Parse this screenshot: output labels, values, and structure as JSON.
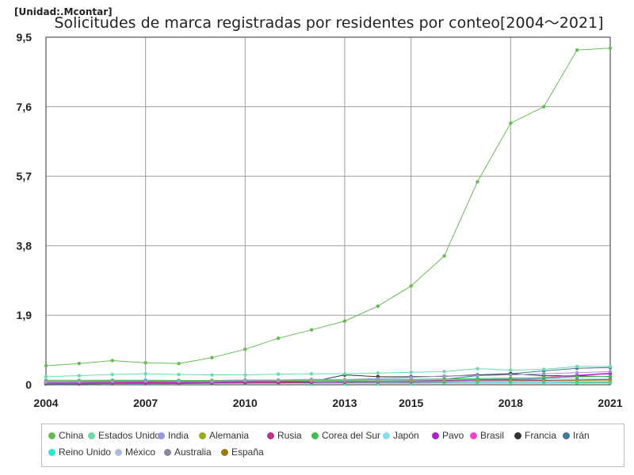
{
  "unit_label": "[Unidad:.Mcontar]",
  "chart_data": {
    "type": "line",
    "title": "Solicitudes de marca registradas por residentes por conteo[2004～2021]",
    "xlabel": "",
    "ylabel": "",
    "x": [
      2004,
      2005,
      2006,
      2007,
      2008,
      2009,
      2010,
      2011,
      2012,
      2013,
      2014,
      2015,
      2016,
      2017,
      2018,
      2019,
      2020,
      2021
    ],
    "x_ticks": [
      "2004",
      "2007",
      "2010",
      "2013",
      "2015",
      "2018",
      "2021"
    ],
    "y_ticks": [
      "0",
      "1,9",
      "3,8",
      "5,7",
      "7,6",
      "9,5"
    ],
    "xlim": [
      2004,
      2021
    ],
    "ylim": [
      0,
      9.5
    ],
    "grid": true,
    "legend_position": "bottom",
    "series": [
      {
        "name": "China",
        "color": "#66bb55",
        "values": [
          0.52,
          0.58,
          0.66,
          0.6,
          0.58,
          0.74,
          0.97,
          1.27,
          1.5,
          1.74,
          2.15,
          2.7,
          3.52,
          5.55,
          7.15,
          7.6,
          9.15,
          9.2
        ]
      },
      {
        "name": "Estados Unidos",
        "color": "#66ddaa",
        "values": [
          0.22,
          0.25,
          0.28,
          0.3,
          0.28,
          0.27,
          0.27,
          0.29,
          0.3,
          0.3,
          0.32,
          0.34,
          0.36,
          0.44,
          0.4,
          0.42,
          0.5,
          0.5
        ]
      },
      {
        "name": "India",
        "color": "#9999dd",
        "values": [
          0.07,
          0.08,
          0.09,
          0.1,
          0.09,
          0.09,
          0.12,
          0.13,
          0.15,
          0.14,
          0.17,
          0.2,
          0.24,
          0.25,
          0.27,
          0.3,
          0.33,
          0.36
        ]
      },
      {
        "name": "Alemania",
        "color": "#99aa22",
        "values": [
          0.1,
          0.1,
          0.1,
          0.1,
          0.1,
          0.1,
          0.11,
          0.11,
          0.1,
          0.1,
          0.1,
          0.1,
          0.1,
          0.1,
          0.1,
          0.1,
          0.11,
          0.11
        ]
      },
      {
        "name": "Rusia",
        "color": "#bb3388",
        "values": [
          0.04,
          0.04,
          0.05,
          0.05,
          0.05,
          0.05,
          0.05,
          0.06,
          0.06,
          0.07,
          0.08,
          0.08,
          0.09,
          0.1,
          0.11,
          0.12,
          0.13,
          0.14
        ]
      },
      {
        "name": "Corea del Sur",
        "color": "#44bb55",
        "values": [
          0.11,
          0.11,
          0.12,
          0.12,
          0.12,
          0.12,
          0.13,
          0.13,
          0.13,
          0.13,
          0.14,
          0.15,
          0.16,
          0.17,
          0.18,
          0.19,
          0.22,
          0.23
        ]
      },
      {
        "name": "Japón",
        "color": "#88ddee",
        "values": [
          0.13,
          0.13,
          0.13,
          0.13,
          0.12,
          0.11,
          0.11,
          0.11,
          0.11,
          0.11,
          0.12,
          0.13,
          0.14,
          0.16,
          0.17,
          0.17,
          0.17,
          0.16
        ]
      },
      {
        "name": "Pavo",
        "color": "#aa22cc",
        "values": [
          0.07,
          0.07,
          0.07,
          0.07,
          0.07,
          0.07,
          0.08,
          0.09,
          0.1,
          0.1,
          0.11,
          0.12,
          0.12,
          0.13,
          0.14,
          0.16,
          0.25,
          0.3
        ]
      },
      {
        "name": "Brasil",
        "color": "#ee44cc",
        "values": [
          0.07,
          0.07,
          0.08,
          0.08,
          0.08,
          0.08,
          0.1,
          0.11,
          0.12,
          0.12,
          0.12,
          0.13,
          0.13,
          0.14,
          0.16,
          0.2,
          0.26,
          0.32
        ]
      },
      {
        "name": "Francia",
        "color": "#333333",
        "values": [
          0.07,
          0.08,
          0.08,
          0.08,
          0.08,
          0.08,
          0.08,
          0.08,
          0.08,
          0.27,
          0.22,
          0.22,
          0.23,
          0.27,
          0.3,
          0.25,
          0.24,
          0.22
        ]
      },
      {
        "name": "Irán",
        "color": "#447799",
        "values": [
          0.02,
          0.02,
          0.03,
          0.03,
          0.03,
          0.04,
          0.05,
          0.05,
          0.06,
          0.07,
          0.08,
          0.1,
          0.15,
          0.25,
          0.3,
          0.38,
          0.45,
          0.47
        ]
      },
      {
        "name": "Reino Unido",
        "color": "#22eecc",
        "values": [
          0.04,
          0.04,
          0.04,
          0.04,
          0.04,
          0.04,
          0.04,
          0.04,
          0.04,
          0.04,
          0.04,
          0.04,
          0.05,
          0.05,
          0.05,
          0.05,
          0.06,
          0.06
        ]
      },
      {
        "name": "México",
        "color": "#aabbdd",
        "values": [
          0.06,
          0.06,
          0.06,
          0.07,
          0.07,
          0.07,
          0.08,
          0.08,
          0.09,
          0.09,
          0.1,
          0.11,
          0.12,
          0.13,
          0.13,
          0.13,
          0.13,
          0.15
        ]
      },
      {
        "name": "Australia",
        "color": "#888899",
        "values": [
          0.05,
          0.05,
          0.05,
          0.05,
          0.05,
          0.05,
          0.05,
          0.05,
          0.05,
          0.05,
          0.05,
          0.06,
          0.06,
          0.06,
          0.06,
          0.06,
          0.07,
          0.07
        ]
      },
      {
        "name": "España",
        "color": "#997711",
        "values": [
          0.06,
          0.06,
          0.06,
          0.06,
          0.05,
          0.05,
          0.05,
          0.05,
          0.05,
          0.05,
          0.05,
          0.05,
          0.05,
          0.05,
          0.05,
          0.05,
          0.05,
          0.05
        ]
      }
    ]
  }
}
